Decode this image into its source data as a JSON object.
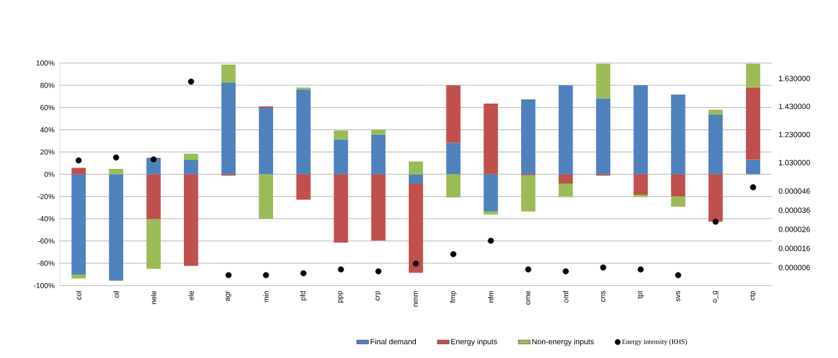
{
  "chart_data": {
    "type": "bar",
    "stacked": true,
    "categories": [
      "col",
      "oil",
      "nele",
      "ele",
      "agr",
      "min",
      "pfd",
      "ppp",
      "crp",
      "nmm",
      "fmp",
      "nfm",
      "ome",
      "omf",
      "cns",
      "tpt",
      "svs",
      "o_g",
      "ctp"
    ],
    "ylim": [
      -100,
      100
    ],
    "yticks": [
      {
        "value": -100,
        "label": "-100%"
      },
      {
        "value": -80,
        "label": "-80%"
      },
      {
        "value": -60,
        "label": "-60%"
      },
      {
        "value": -40,
        "label": "-40%"
      },
      {
        "value": -20,
        "label": "-20%"
      },
      {
        "value": 0,
        "label": "0%"
      },
      {
        "value": 20,
        "label": "20%"
      },
      {
        "value": 40,
        "label": "40%"
      },
      {
        "value": 60,
        "label": "60%"
      },
      {
        "value": 80,
        "label": "80%"
      },
      {
        "value": 100,
        "label": "100%"
      }
    ],
    "y2lim": [
      0.9465,
      1.74
    ],
    "y2ticks": [
      {
        "value": 1.03,
        "label": "1.030000"
      },
      {
        "value": 1.23,
        "label": "1.230000"
      },
      {
        "value": 1.43,
        "label": "1.430000"
      },
      {
        "value": 1.63,
        "label": "1.630000"
      }
    ],
    "y3lim": [
      -3.4e-06,
      5.48e-05
    ],
    "y3ticks": [
      {
        "value": 6e-06,
        "label": "0.000006"
      },
      {
        "value": 1.6e-05,
        "label": "0.000016"
      },
      {
        "value": 2.6e-05,
        "label": "0.000026"
      },
      {
        "value": 3.6e-05,
        "label": "0.000036"
      },
      {
        "value": 4.6e-05,
        "label": "0.000046"
      }
    ],
    "grid": "y",
    "legend": "bottom",
    "series": [
      {
        "name": "Final demand",
        "color": "#4f81bd",
        "values": [
          -90.2,
          -95.6,
          14.8,
          12.9,
          82.3,
          59.8,
          76.3,
          31.3,
          35.6,
          -8.3,
          28.3,
          -33.3,
          67.3,
          80,
          68.1,
          80,
          71.7,
          53.5,
          13.3
        ]
      },
      {
        "name": "Energy inputs",
        "color": "#c0504d",
        "values": [
          5.8,
          null,
          -40.2,
          -82.3,
          -1.2,
          1.2,
          -22.9,
          -61.5,
          -59.5,
          -80.4,
          51.7,
          63.5,
          -1.2,
          -8.3,
          -1.2,
          -18.3,
          -20,
          -42.5,
          64.8
        ]
      },
      {
        "name": "Non-energy inputs",
        "color": "#9bbb59",
        "values": [
          -3.5,
          4.8,
          -44.8,
          5.6,
          16.3,
          -40.2,
          1.7,
          8.1,
          4.6,
          11.5,
          -20.8,
          -2.9,
          -32.3,
          -12.1,
          31.3,
          -2.1,
          -9.2,
          4.6,
          21.3
        ]
      },
      {
        "name": "Energy intensity (RHS)",
        "type": "scatter",
        "axis": "y2",
        "color": "#000000",
        "values": [
          1.045,
          1.066,
          1.053,
          1.607,
          null,
          null,
          null,
          null,
          null,
          null,
          null,
          null,
          null,
          null,
          null,
          null,
          null,
          null,
          null
        ]
      },
      {
        "type": "scatter",
        "axis": "y3",
        "color": "#000000",
        "values": [
          null,
          null,
          null,
          null,
          2e-06,
          2e-06,
          3e-06,
          5e-06,
          4e-06,
          8e-06,
          1.3e-05,
          2e-05,
          5e-06,
          4e-06,
          6e-06,
          5e-06,
          2e-06,
          3e-05,
          4.8e-05
        ]
      }
    ]
  }
}
